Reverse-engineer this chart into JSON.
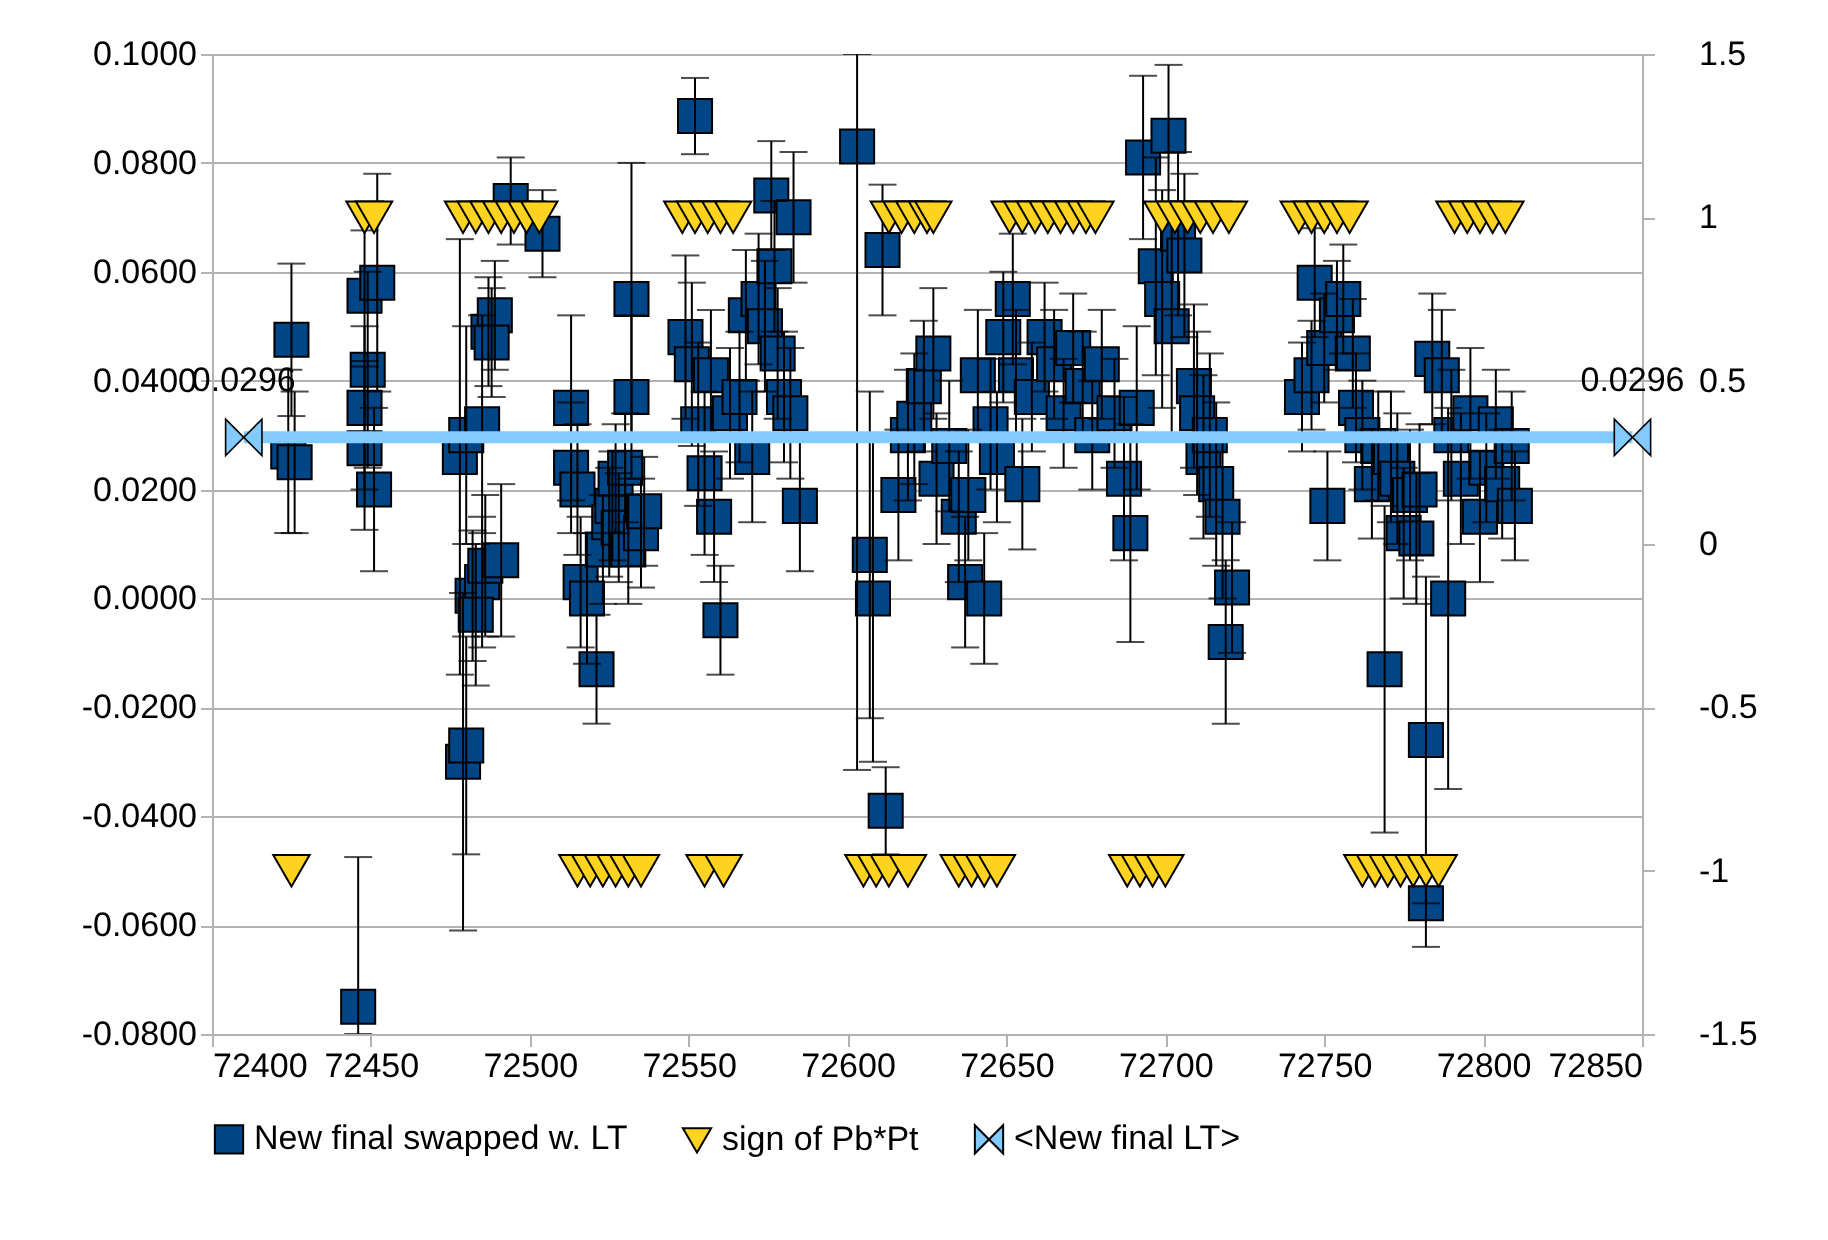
{
  "chart_data": {
    "type": "scatter",
    "xlim": [
      72400,
      72850
    ],
    "xticks": [
      72400,
      72450,
      72500,
      72550,
      72600,
      72650,
      72700,
      72750,
      72800,
      72850
    ],
    "ylim": [
      -0.08,
      0.1
    ],
    "yticks": [
      {
        "value": -0.08,
        "label": "-0.0800"
      },
      {
        "value": -0.06,
        "label": "-0.0600"
      },
      {
        "value": -0.04,
        "label": "-0.0400"
      },
      {
        "value": -0.02,
        "label": "-0.0200"
      },
      {
        "value": 0,
        "label": "0.0000"
      },
      {
        "value": 0.02,
        "label": "0.0200"
      },
      {
        "value": 0.04,
        "label": "0.0400"
      },
      {
        "value": 0.06,
        "label": "0.0600"
      },
      {
        "value": 0.08,
        "label": "0.0800"
      },
      {
        "value": 0.1,
        "label": "0.1000"
      }
    ],
    "y2lim": [
      -1.5,
      1.5
    ],
    "y2ticks": [
      -1.5,
      -1,
      -0.5,
      0,
      0.5,
      1,
      1.5
    ],
    "grid": "y",
    "legend": "bottom",
    "series": [
      {
        "name": "New final swapped w. LT",
        "type": "scatter",
        "marker": "square",
        "color": "#004586",
        "x": [
          72425,
          72424,
          72426,
          72446,
          72448,
          72452,
          72449,
          72448,
          72448,
          72451,
          72478,
          72480,
          72479,
          72480,
          72482,
          72485,
          72483,
          72486,
          72491,
          72487,
          72489,
          72488,
          72485,
          72494,
          72504,
          72513,
          72513,
          72515,
          72516,
          72518,
          72521,
          72523,
          72525,
          72526,
          72527,
          72528,
          72530,
          72532,
          72532,
          72531,
          72535,
          72536,
          72549,
          72552,
          72551,
          72553,
          72555,
          72557,
          72558,
          72560,
          72563,
          72566,
          72568,
          72570,
          72572,
          72574,
          72576,
          72577,
          72578,
          72580,
          72582,
          72583,
          72585,
          72603,
          72607,
          72611,
          72608,
          72612,
          72616,
          72619,
          72621,
          72624,
          72627,
          72628,
          72632,
          72635,
          72637,
          72638,
          72641,
          72643,
          72645,
          72647,
          72649,
          72652,
          72653,
          72655,
          72658,
          72662,
          72665,
          72668,
          72671,
          72674,
          72677,
          72680,
          72684,
          72687,
          72689,
          72691,
          72693,
          72701,
          72697,
          72699,
          72702,
          72704,
          72706,
          72709,
          72710,
          72712,
          72714,
          72716,
          72718,
          72719,
          72721,
          72743,
          72746,
          72747,
          72750,
          72751,
          72754,
          72756,
          72759,
          72760,
          72762,
          72765,
          72767,
          72769,
          72771,
          72773,
          72775,
          72777,
          72779,
          72780,
          72782,
          72784,
          72787,
          72782,
          72789,
          72790,
          72793,
          72796,
          72799,
          72801,
          72804,
          72806,
          72809,
          72810
        ],
        "values": [
          0.0475,
          0.027,
          0.025,
          -0.075,
          0.0556,
          0.058,
          0.042,
          0.035,
          0.0276,
          0.02,
          0.026,
          0.03,
          -0.03,
          -0.027,
          0.0005,
          0.003,
          -0.003,
          0.006,
          0.007,
          0.049,
          0.052,
          0.047,
          0.032,
          0.073,
          0.067,
          0.035,
          0.024,
          0.02,
          0.003,
          0.0,
          -0.013,
          0.009,
          0.014,
          0.017,
          0.022,
          0.013,
          0.024,
          0.055,
          0.037,
          0.009,
          0.012,
          0.016,
          0.048,
          0.0886,
          0.043,
          0.032,
          0.023,
          0.041,
          0.015,
          -0.004,
          0.034,
          0.037,
          0.052,
          0.026,
          0.055,
          0.05,
          0.074,
          0.061,
          0.045,
          0.037,
          0.034,
          0.07,
          0.017,
          0.083,
          0.008,
          0.064,
          0.0,
          -0.039,
          0.019,
          0.03,
          0.033,
          0.039,
          0.045,
          0.022,
          0.028,
          0.015,
          0.003,
          0.019,
          0.041,
          0.0,
          0.032,
          0.026,
          0.048,
          0.055,
          0.041,
          0.021,
          0.037,
          0.048,
          0.043,
          0.034,
          0.046,
          0.039,
          0.03,
          0.043,
          0.034,
          0.022,
          0.012,
          0.035,
          0.081,
          0.085,
          0.061,
          0.055,
          0.05,
          0.067,
          0.063,
          0.039,
          0.034,
          0.026,
          0.03,
          0.021,
          0.015,
          -0.008,
          0.002,
          0.037,
          0.041,
          0.058,
          0.046,
          0.017,
          0.052,
          0.055,
          0.045,
          0.035,
          0.03,
          0.021,
          0.028,
          -0.013,
          0.026,
          0.022,
          0.012,
          0.019,
          0.011,
          0.02,
          -0.026,
          0.044,
          0.041,
          -0.056,
          0.0,
          0.03,
          0.022,
          0.034,
          0.015,
          0.024,
          0.032,
          0.021,
          0.028,
          0.017
        ],
        "errors": [
          0.014,
          0.015,
          0.013,
          [
            -0.08,
            -0.0475
          ],
          0.012,
          0.02,
          0.018,
          0.015,
          0.015,
          0.015,
          0.04,
          0.02,
          0.031,
          0.02,
          0.012,
          0.012,
          0.013,
          0.013,
          0.014,
          0.01,
          0.01,
          0.01,
          0.02,
          0.008,
          0.008,
          0.017,
          0.012,
          0.012,
          0.012,
          0.012,
          0.01,
          0.01,
          0.01,
          0.01,
          0.01,
          0.01,
          0.01,
          0.025,
          0.015,
          0.01,
          0.01,
          0.01,
          0.015,
          0.007,
          0.015,
          0.015,
          0.015,
          0.012,
          0.012,
          0.01,
          0.012,
          0.012,
          0.012,
          0.012,
          0.012,
          0.012,
          0.01,
          0.012,
          0.012,
          0.012,
          0.012,
          0.012,
          0.012,
          [
            -0.0315,
            0.1
          ],
          0.03,
          0.012,
          0.03,
          0.008,
          0.012,
          0.012,
          0.012,
          0.012,
          0.012,
          0.012,
          0.012,
          0.012,
          0.012,
          0.012,
          0.012,
          0.012,
          0.012,
          0.012,
          0.012,
          0.012,
          0.012,
          0.012,
          0.01,
          0.01,
          0.01,
          0.01,
          0.01,
          0.01,
          0.01,
          0.01,
          0.01,
          0.015,
          0.02,
          0.015,
          0.015,
          0.013,
          0.02,
          0.02,
          0.02,
          0.015,
          0.015,
          0.015,
          0.015,
          0.015,
          0.015,
          0.015,
          0.015,
          0.015,
          0.012,
          0.01,
          0.01,
          0.01,
          0.01,
          0.01,
          0.01,
          0.01,
          0.01,
          0.01,
          0.01,
          0.01,
          0.01,
          0.03,
          0.012,
          0.012,
          0.012,
          0.012,
          0.012,
          0.012,
          0.03,
          0.012,
          0.012,
          0.008,
          0.035,
          0.012,
          0.012,
          0.012,
          0.012,
          0.01,
          0.01,
          0.01,
          0.01,
          0.01
        ]
      },
      {
        "name": "sign of Pb*Pt",
        "type": "scatter",
        "marker": "triangle",
        "axis": "y2",
        "color": "#ffd320",
        "x": [
          72448,
          72451,
          72479,
          72483,
          72487,
          72491,
          72495,
          72499,
          72503,
          72548,
          72552,
          72556,
          72560,
          72564,
          72613,
          72617,
          72621,
          72625,
          72627,
          72651,
          72655,
          72659,
          72663,
          72667,
          72671,
          72675,
          72678,
          72699,
          72703,
          72707,
          72711,
          72715,
          72720,
          72742,
          72746,
          72750,
          72754,
          72758,
          72791,
          72795,
          72799,
          72803,
          72807,
          72425,
          72515,
          72519,
          72523,
          72527,
          72531,
          72535,
          72555,
          72561,
          72605,
          72609,
          72613,
          72619,
          72635,
          72639,
          72643,
          72647,
          72688,
          72692,
          72696,
          72700,
          72762,
          72766,
          72770,
          72774,
          72778,
          72782,
          72786
        ],
        "values": [
          1,
          1,
          1,
          1,
          1,
          1,
          1,
          1,
          1,
          1,
          1,
          1,
          1,
          1,
          1,
          1,
          1,
          1,
          1,
          1,
          1,
          1,
          1,
          1,
          1,
          1,
          1,
          1,
          1,
          1,
          1,
          1,
          1,
          1,
          1,
          1,
          1,
          1,
          1,
          1,
          1,
          1,
          1,
          -1,
          -1,
          -1,
          -1,
          -1,
          -1,
          -1,
          -1,
          -1,
          -1,
          -1,
          -1,
          -1,
          -1,
          -1,
          -1,
          -1,
          -1,
          -1,
          -1,
          -1,
          -1,
          -1,
          -1,
          -1,
          -1,
          -1,
          -1
        ]
      },
      {
        "name": "<New final LT>",
        "type": "line",
        "marker": "diamond",
        "color": "#83caff",
        "x": [
          72410,
          72847
        ],
        "values": [
          0.0296,
          0.0296
        ],
        "value_labels": [
          "0.0296",
          "0.0296"
        ]
      }
    ]
  }
}
